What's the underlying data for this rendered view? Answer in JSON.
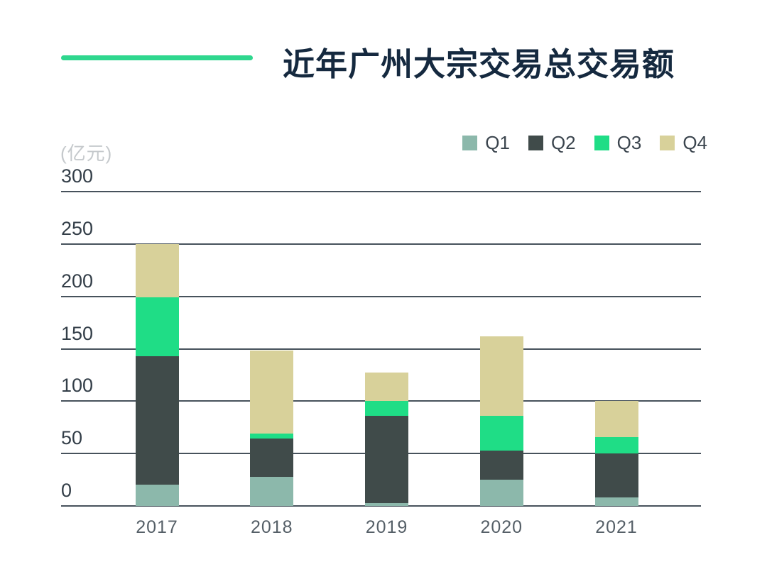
{
  "title": "近年广州大宗交易总交易额",
  "unit_label": "(亿元)",
  "legend": [
    {
      "label": "Q1",
      "color": "#8cb8ab"
    },
    {
      "label": "Q2",
      "color": "#404b4a"
    },
    {
      "label": "Q3",
      "color": "#1fdd86"
    },
    {
      "label": "Q4",
      "color": "#d8d19a"
    }
  ],
  "colors": {
    "accent_line": "#2fd78e",
    "title_text": "#15293f",
    "gridline": "#47525c",
    "y_tick_text": "#333e48",
    "x_tick_text": "#555f67",
    "legend_text": "#3b454e",
    "unit_text": "#c5c9cc",
    "background": "#ffffff"
  },
  "chart_data": {
    "type": "bar",
    "stacked": true,
    "title": "近年广州大宗交易总交易额",
    "ylabel": "(亿元)",
    "categories": [
      "2017",
      "2018",
      "2019",
      "2020",
      "2021"
    ],
    "series": [
      {
        "name": "Q1",
        "color": "#8cb8ab",
        "values": [
          20,
          28,
          3,
          25,
          8
        ]
      },
      {
        "name": "Q2",
        "color": "#404b4a",
        "values": [
          123,
          36,
          83,
          28,
          42
        ]
      },
      {
        "name": "Q3",
        "color": "#1fdd86",
        "values": [
          56,
          5,
          14,
          33,
          16
        ]
      },
      {
        "name": "Q4",
        "color": "#d8d19a",
        "values": [
          51,
          79,
          27,
          76,
          34
        ]
      }
    ],
    "totals": [
      250,
      148,
      127,
      162,
      100
    ],
    "yticks": [
      0,
      50,
      100,
      150,
      200,
      250,
      300
    ],
    "ylim": [
      0,
      300
    ],
    "grid": true,
    "legend_position": "top-right"
  }
}
